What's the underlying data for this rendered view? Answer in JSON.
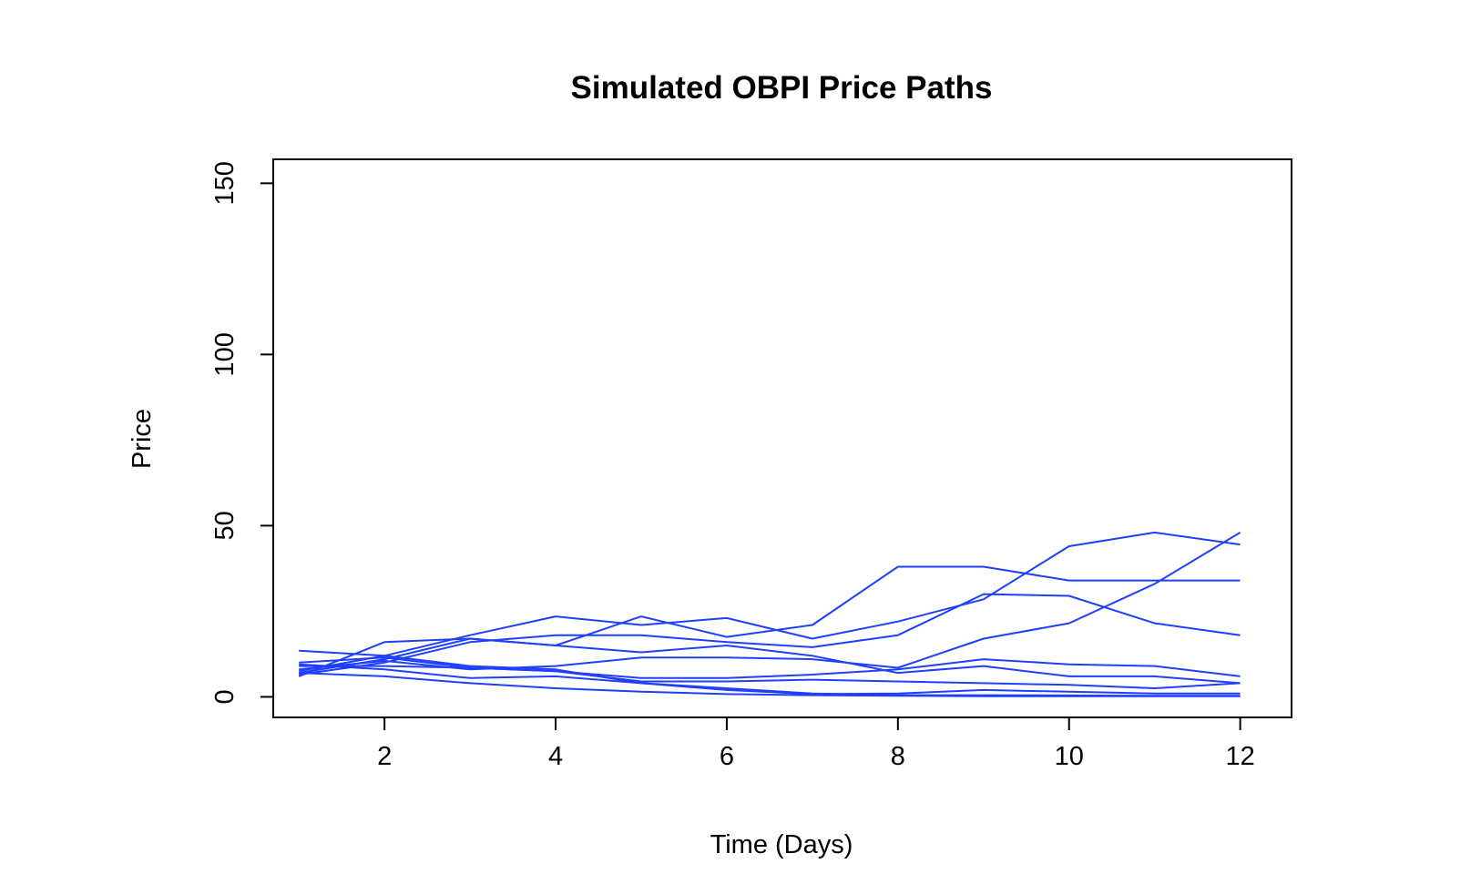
{
  "chart_data": {
    "type": "line",
    "title": "Simulated OBPI Price Paths",
    "xlabel": "Time (Days)",
    "ylabel": "Price",
    "xlim": [
      0.7,
      12.6
    ],
    "ylim": [
      -6,
      157
    ],
    "x_ticks": [
      2,
      4,
      6,
      8,
      10,
      12
    ],
    "y_ticks": [
      0,
      50,
      100,
      150
    ],
    "grid": false,
    "legend": "none",
    "line_color": "#1f3fff",
    "x": [
      1,
      2,
      3,
      4,
      5,
      6,
      7,
      8,
      9,
      10,
      11,
      12
    ],
    "series": [
      {
        "values": [
          6.5,
          10.0,
          16.0,
          18.0,
          18.0,
          16.0,
          14.5,
          18.0,
          30.0,
          29.5,
          21.5,
          18.0
        ]
      },
      {
        "values": [
          7.0,
          11.0,
          17.0,
          15.0,
          23.5,
          17.5,
          21.0,
          38.0,
          38.0,
          34.0,
          34.0,
          34.0
        ]
      },
      {
        "values": [
          7.5,
          12.0,
          18.0,
          23.5,
          21.0,
          23.0,
          17.0,
          22.0,
          28.5,
          44.0,
          48.0,
          44.5
        ]
      },
      {
        "values": [
          6.0,
          16.0,
          17.0,
          15.0,
          13.0,
          15.0,
          12.0,
          7.0,
          9.0,
          6.0,
          6.0,
          4.0
        ]
      },
      {
        "values": [
          8.0,
          10.5,
          8.0,
          9.0,
          11.5,
          11.5,
          11.0,
          8.5,
          17.0,
          21.5,
          33.0,
          48.0
        ]
      },
      {
        "values": [
          9.0,
          9.0,
          8.5,
          7.5,
          5.5,
          5.5,
          6.5,
          8.0,
          11.0,
          9.5,
          9.0,
          6.0
        ]
      },
      {
        "values": [
          10.0,
          11.5,
          8.5,
          7.5,
          4.5,
          4.5,
          5.0,
          4.5,
          4.0,
          3.5,
          2.5,
          4.0
        ]
      },
      {
        "values": [
          13.5,
          12.0,
          9.0,
          8.0,
          4.0,
          2.0,
          0.8,
          1.0,
          2.0,
          1.5,
          1.0,
          1.0
        ]
      },
      {
        "values": [
          9.5,
          8.0,
          5.5,
          6.0,
          4.0,
          2.5,
          1.0,
          0.5,
          0.5,
          0.4,
          0.3,
          0.3
        ]
      },
      {
        "values": [
          7.0,
          6.0,
          4.0,
          2.5,
          1.5,
          0.8,
          0.5,
          0.3,
          0.2,
          0.2,
          0.2,
          0.2
        ]
      }
    ]
  }
}
